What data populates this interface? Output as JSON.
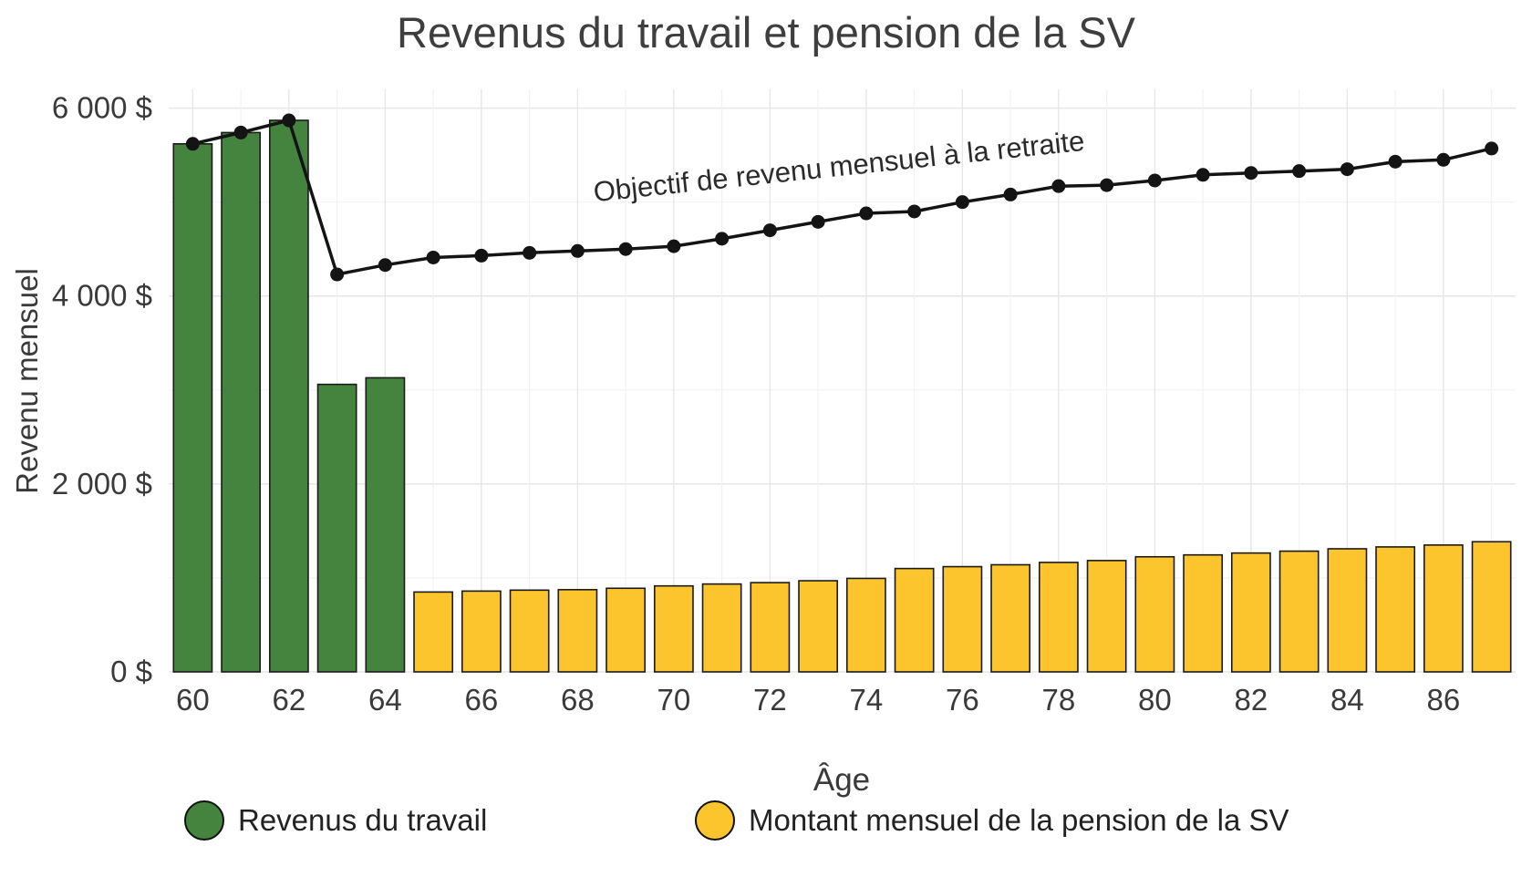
{
  "title": "Revenus du travail et pension de la SV",
  "annotation": "Objectif de revenu mensuel à la retraite",
  "legend": [
    {
      "label": "Revenus du travail",
      "color": "#45843e"
    },
    {
      "label": "Montant mensuel de la pension de la SV",
      "color": "#fcc42d"
    }
  ],
  "chart_data": {
    "type": "bar+line",
    "title": "Revenus du travail et pension de la SV",
    "xlabel": "Âge",
    "ylabel": "Revenu mensuel",
    "ylim": [
      0,
      6200
    ],
    "yticks": [
      0,
      2000,
      4000,
      6000
    ],
    "ytick_labels": [
      "0 $",
      "2 000 $",
      "4 000 $",
      "6 000 $"
    ],
    "xticks": [
      60,
      62,
      64,
      66,
      68,
      70,
      72,
      74,
      76,
      78,
      80,
      82,
      84,
      86
    ],
    "grid": true,
    "legend_position": "bottom",
    "x": [
      60,
      61,
      62,
      63,
      64,
      65,
      66,
      67,
      68,
      69,
      70,
      71,
      72,
      73,
      74,
      75,
      76,
      77,
      78,
      79,
      80,
      81,
      82,
      83,
      84,
      85,
      86,
      87
    ],
    "series": [
      {
        "name": "Revenus du travail",
        "type": "bar",
        "color": "#45843e",
        "values": [
          5620,
          5740,
          5870,
          3060,
          3130,
          null,
          null,
          null,
          null,
          null,
          null,
          null,
          null,
          null,
          null,
          null,
          null,
          null,
          null,
          null,
          null,
          null,
          null,
          null,
          null,
          null,
          null,
          null
        ]
      },
      {
        "name": "Montant mensuel de la pension de la SV",
        "type": "bar",
        "color": "#fcc42d",
        "values": [
          null,
          null,
          null,
          null,
          null,
          850,
          860,
          870,
          875,
          890,
          915,
          935,
          950,
          970,
          995,
          1100,
          1120,
          1140,
          1165,
          1185,
          1225,
          1245,
          1265,
          1285,
          1310,
          1330,
          1350,
          1385
        ]
      },
      {
        "name": "Objectif de revenu mensuel à la retraite",
        "type": "line",
        "color": "#141414",
        "values": [
          5620,
          5740,
          5870,
          4230,
          4330,
          4410,
          4430,
          4460,
          4480,
          4500,
          4530,
          4610,
          4700,
          4790,
          4880,
          4900,
          5000,
          5080,
          5170,
          5180,
          5230,
          5290,
          5310,
          5330,
          5350,
          5430,
          5450,
          5570
        ]
      }
    ]
  }
}
